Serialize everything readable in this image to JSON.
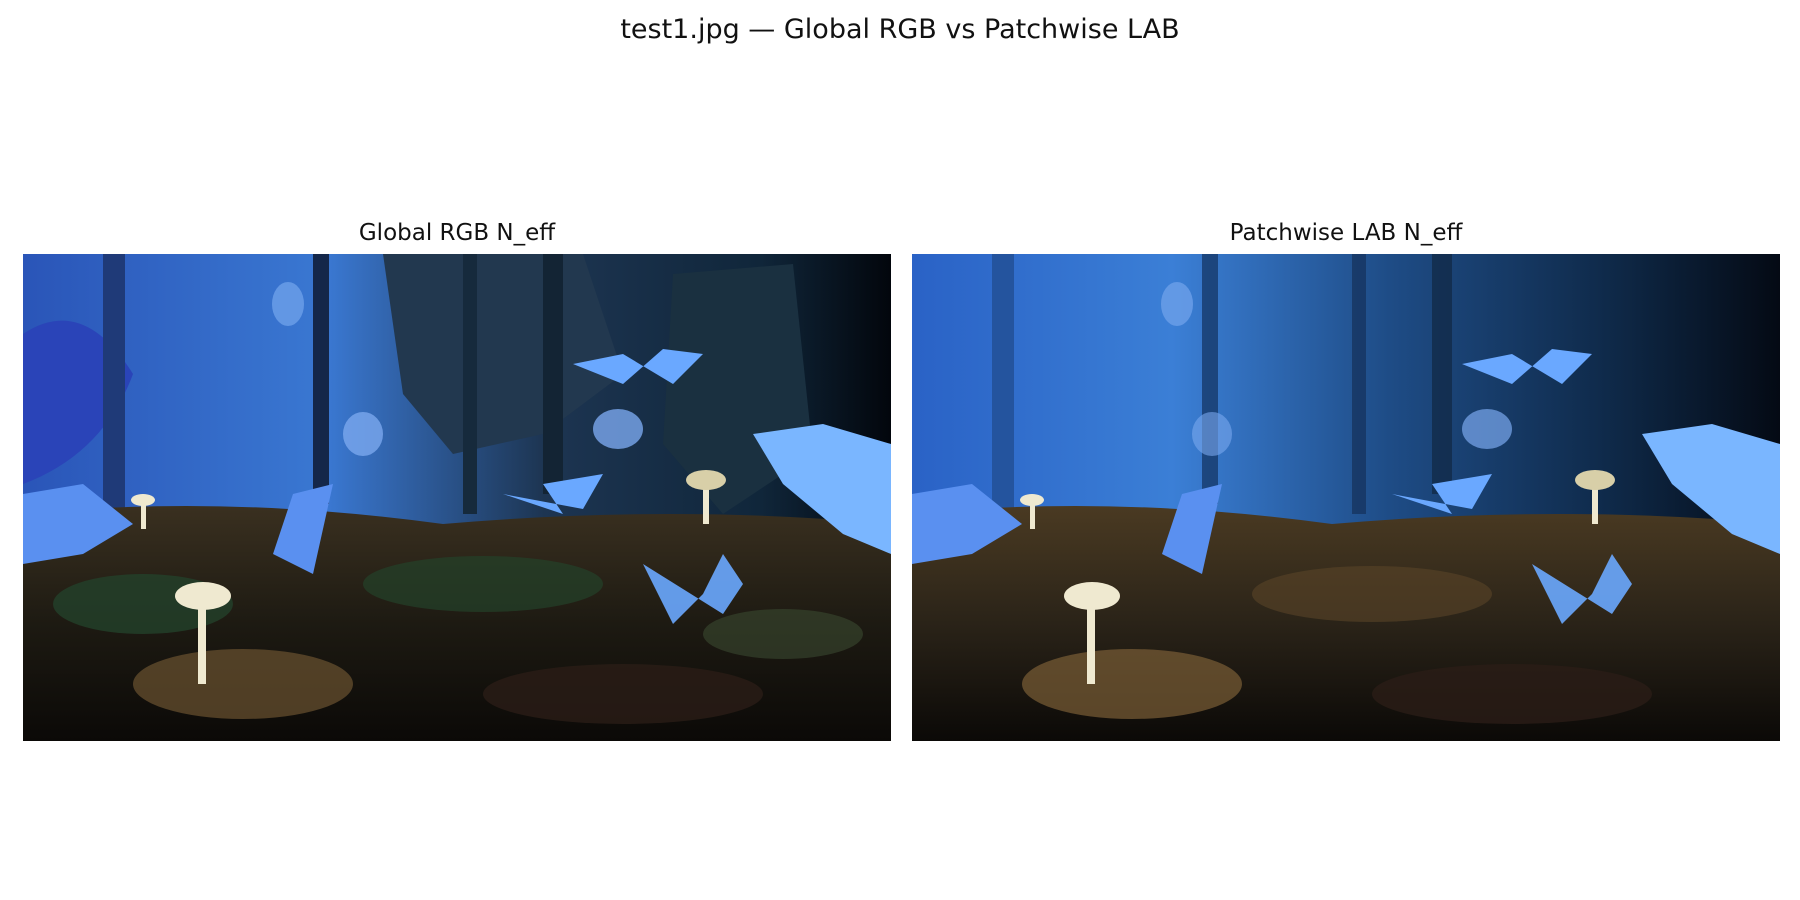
{
  "figure": {
    "title": "test1.jpg — Global RGB vs Patchwise LAB"
  },
  "panels": [
    {
      "title": "Global RGB N_eff"
    },
    {
      "title": "Patchwise LAB N_eff"
    }
  ],
  "scene": {
    "subject": "forest floor with blue butterflies and glowing mushrooms",
    "colors": {
      "sky_light": "#3b7fd6",
      "sky_dark": "#0b1c3a",
      "butterfly": "#6aa8ff",
      "ground": "#2a2318",
      "mushroom": "#efe9d0",
      "posterized_dark": "#1f3450",
      "posterized_green": "#23412a"
    }
  }
}
